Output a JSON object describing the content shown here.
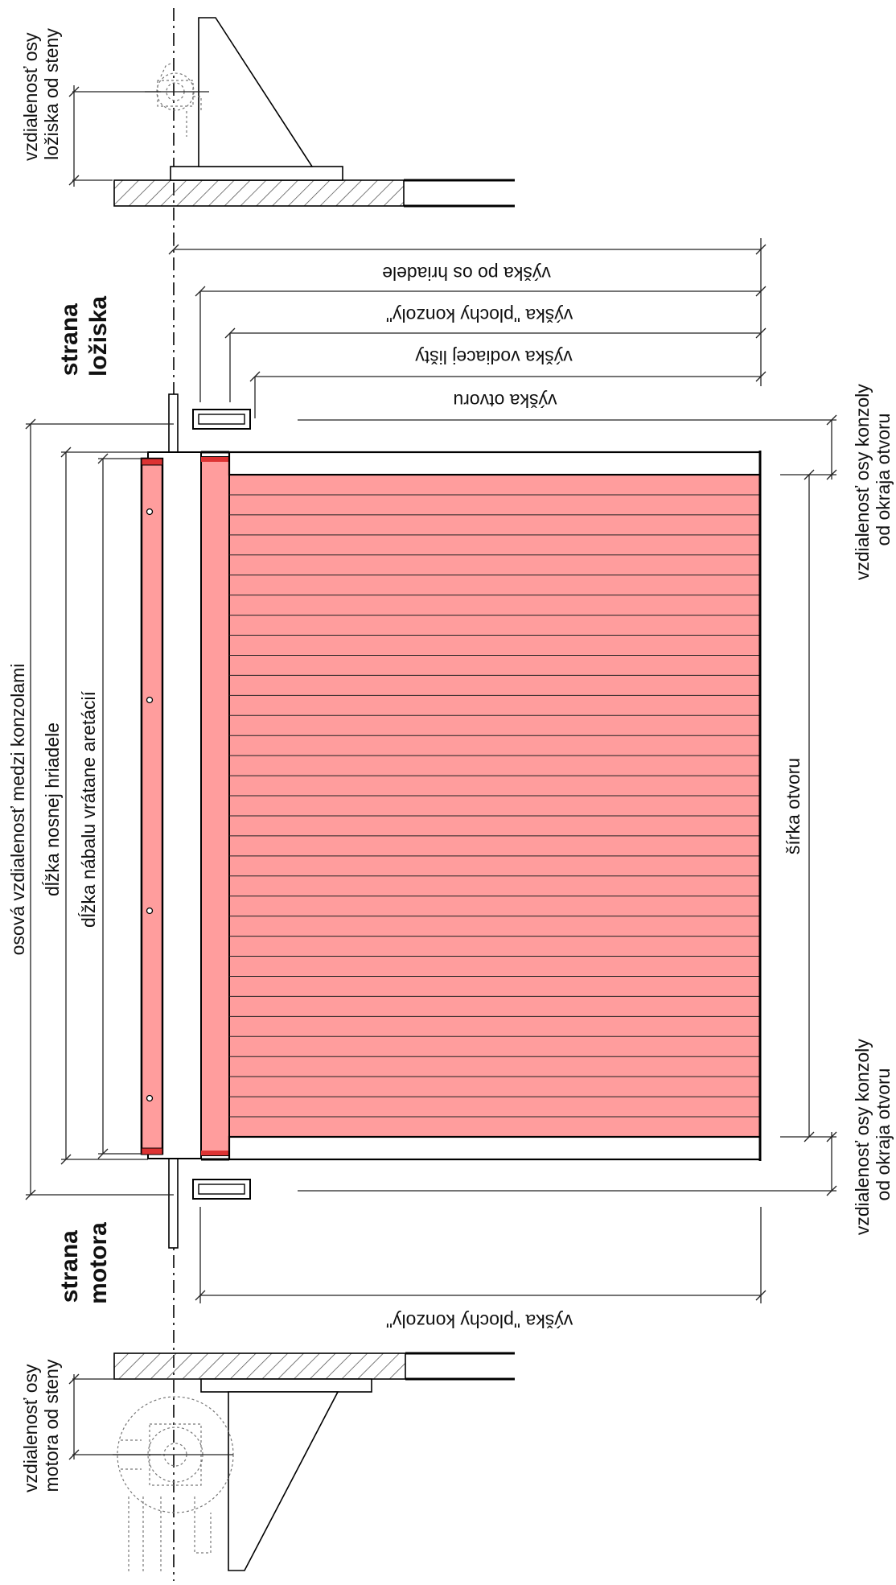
{
  "labels": {
    "wall_bearing_axis": [
      "vzdialenosť osy",
      "ložiska od steny"
    ],
    "wall_motor_axis": [
      "vzdialenosť osy",
      "motora od steny"
    ],
    "side_bearing": [
      "strana",
      "ložiska"
    ],
    "side_motor": [
      "strana",
      "motora"
    ],
    "height_shaft_axis": "výška po os hriadele",
    "height_bracket_top": "výška \"plochy konzoly\"",
    "height_guide_rail": "výška vodiacej lišty",
    "height_opening": "výška otvoru",
    "height_bracket_bottom": "výška \"plochy konzoly\"",
    "axial_distance_brackets": "osová vzdialenosť medzi konzolami",
    "shaft_length": "dĺžka nosnej hriadele",
    "winding_length": "dĺžka nábalu vrátane aretácií",
    "opening_width": "šírka otvoru",
    "bracket_offset_top": [
      "vzdialenosť osy konzoly",
      "od okraja otvoru"
    ],
    "bracket_offset_bottom": [
      "vzdialenosť osy konzoly",
      "od okraja otvoru"
    ]
  },
  "colors": {
    "curtain_fill": "#ff9d9d",
    "curtain_stroke": "#cc2222",
    "line": "#000000",
    "hatch": "#444444"
  }
}
